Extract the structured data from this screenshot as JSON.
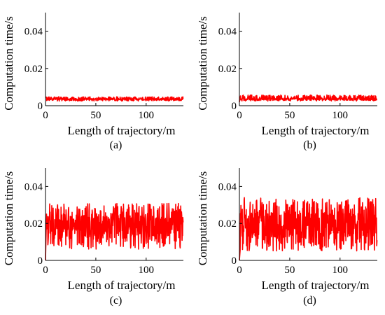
{
  "chart_data": [
    {
      "type": "line",
      "caption": "(a)",
      "xlabel": "Length of trajectory/m",
      "ylabel": "Computation time/s",
      "xlim": [
        0,
        137
      ],
      "ylim": [
        0,
        0.05
      ],
      "xticks": [
        0,
        50,
        100
      ],
      "yticks": [
        0,
        0.02,
        0.04
      ],
      "ytick_labels": [
        "0",
        "0.02",
        "0.04"
      ],
      "grid": false,
      "series": [
        {
          "color": "#ff0000",
          "mean": 0.0035,
          "low": 0.0025,
          "high": 0.0048,
          "start_value": 0.0045
        }
      ]
    },
    {
      "type": "line",
      "caption": "(b)",
      "xlabel": "Length of trajectory/m",
      "ylabel": "Computation time/s",
      "xlim": [
        0,
        137
      ],
      "ylim": [
        0,
        0.05
      ],
      "xticks": [
        0,
        50,
        100
      ],
      "yticks": [
        0,
        0.02,
        0.04
      ],
      "ytick_labels": [
        "0",
        "0.02",
        "0.04"
      ],
      "grid": false,
      "series": [
        {
          "color": "#ff0000",
          "mean": 0.0035,
          "low": 0.0025,
          "high": 0.0058,
          "start_value": 0.002
        }
      ]
    },
    {
      "type": "line",
      "caption": "(c)",
      "xlabel": "Length of trajectory/m",
      "ylabel": "Computation time/s",
      "xlim": [
        0,
        137
      ],
      "ylim": [
        0,
        0.05
      ],
      "xticks": [
        0,
        50,
        100
      ],
      "yticks": [
        0,
        0.02,
        0.04
      ],
      "ytick_labels": [
        "0",
        "0.02",
        "0.04"
      ],
      "grid": false,
      "series": [
        {
          "color": "#ff0000",
          "mean": 0.019,
          "low": 0.006,
          "high": 0.031,
          "start_value": 0.0
        }
      ]
    },
    {
      "type": "line",
      "caption": "(d)",
      "xlabel": "Length of trajectory/m",
      "ylabel": "Computation time/s",
      "xlim": [
        0,
        137
      ],
      "ylim": [
        0,
        0.05
      ],
      "xticks": [
        0,
        50,
        100
      ],
      "yticks": [
        0,
        0.02,
        0.04
      ],
      "ytick_labels": [
        "0",
        "0.02",
        "0.04"
      ],
      "grid": false,
      "series": [
        {
          "color": "#ff0000",
          "mean": 0.019,
          "low": 0.005,
          "high": 0.034,
          "start_value": 0.0
        }
      ]
    }
  ]
}
